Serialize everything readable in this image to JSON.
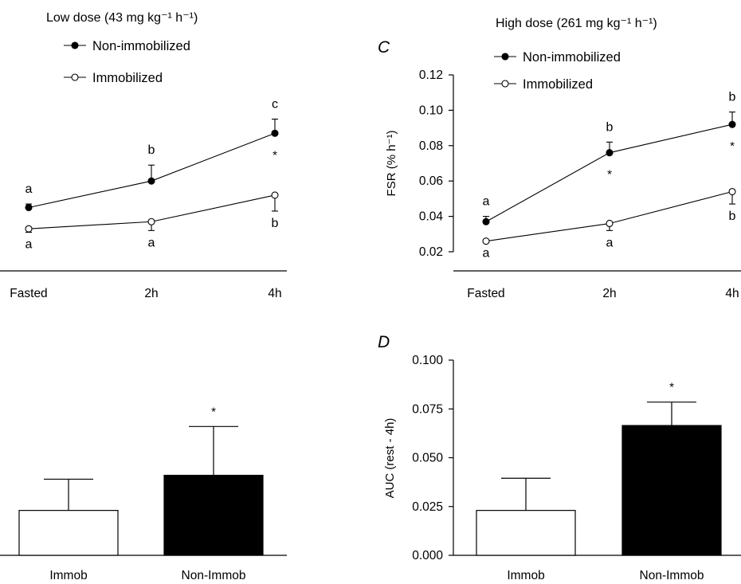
{
  "chart_data": [
    {
      "panel": "",
      "type": "line",
      "title": "Low dose (43 mg kg⁻¹ h⁻¹)",
      "categories": [
        "Fasted",
        "2h",
        "4h"
      ],
      "ylabel": "",
      "ylim": [
        0.02,
        0.12
      ],
      "series": [
        {
          "name": "Non-immobilized",
          "marker": "filled-circle",
          "values": [
            0.045,
            0.06,
            0.087
          ],
          "err_hi": [
            0.002,
            0.009,
            0.008
          ],
          "err_lo": [
            0.0,
            0.0,
            0.0
          ],
          "labels_above": [
            "a",
            "b",
            "c"
          ],
          "labels_below": [
            "",
            "",
            "*"
          ]
        },
        {
          "name": "Immobilized",
          "marker": "open-circle",
          "values": [
            0.033,
            0.037,
            0.052
          ],
          "err_hi": [
            0.0,
            0.0,
            0.0
          ],
          "err_lo": [
            0.002,
            0.005,
            0.009
          ],
          "labels_below": [
            "a",
            "a",
            "b"
          ]
        }
      ],
      "grid": false,
      "legend": "top-left"
    },
    {
      "panel": "C",
      "type": "line",
      "title": "High dose (261 mg kg⁻¹ h⁻¹)",
      "categories": [
        "Fasted",
        "2h",
        "4h"
      ],
      "ylabel": "FSR (% h⁻¹)",
      "ylim": [
        0.02,
        0.12
      ],
      "yticks": [
        "0.12",
        "0.10",
        "0.08",
        "0.06",
        "0.04",
        "0.02"
      ],
      "series": [
        {
          "name": "Non-immobilized",
          "marker": "filled-circle",
          "values": [
            0.037,
            0.076,
            0.092
          ],
          "err_hi": [
            0.003,
            0.006,
            0.007
          ],
          "err_lo": [
            0.0,
            0.0,
            0.0
          ],
          "labels_above": [
            "a",
            "b",
            "b"
          ],
          "labels_below": [
            "",
            "*",
            "*"
          ]
        },
        {
          "name": "Immobilized",
          "marker": "open-circle",
          "values": [
            0.026,
            0.036,
            0.054
          ],
          "err_hi": [
            0.0,
            0.0,
            0.0
          ],
          "err_lo": [
            0.0,
            0.004,
            0.007
          ],
          "labels_below": [
            "a",
            "a",
            "b"
          ]
        }
      ],
      "grid": false,
      "legend": "top-left"
    },
    {
      "panel": "",
      "type": "bar",
      "categories": [
        "Immob",
        "Non-Immob"
      ],
      "values": [
        0.023,
        0.041
      ],
      "err_hi": [
        0.016,
        0.025
      ],
      "fills": [
        "#ffffff",
        "#000000"
      ],
      "annotations": [
        "",
        "*"
      ],
      "ylabel": "",
      "ylim": [
        0,
        0.1
      ]
    },
    {
      "panel": "D",
      "type": "bar",
      "categories": [
        "Immob",
        "Non-Immob"
      ],
      "values": [
        0.023,
        0.0665
      ],
      "err_hi": [
        0.0165,
        0.012
      ],
      "fills": [
        "#ffffff",
        "#000000"
      ],
      "annotations": [
        "",
        "*"
      ],
      "ylabel": "AUC (rest - 4h)",
      "ylim": [
        0,
        0.1
      ],
      "yticks": [
        "0.100",
        "0.075",
        "0.050",
        "0.025",
        "0.000"
      ]
    }
  ]
}
